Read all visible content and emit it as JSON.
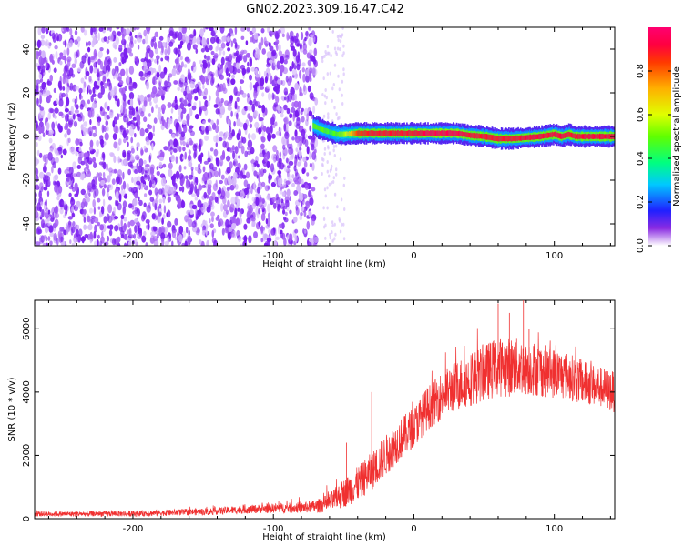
{
  "title": "GN02.2023.309.16.47.C42",
  "chart_data": [
    {
      "type": "heatmap",
      "name": "spectrogram",
      "title": "GN02.2023.309.16.47.C42",
      "xlabel": "Height of straight line (km)",
      "ylabel": "Frequency (Hz)",
      "xlim": [
        -270,
        143
      ],
      "ylim": [
        -50,
        50
      ],
      "x_ticks": [
        -200,
        -100,
        0,
        100
      ],
      "x_tick_labels": [
        "-200",
        "-100",
        "0",
        "100"
      ],
      "y_ticks": [
        -40,
        -20,
        0,
        20,
        40
      ],
      "y_tick_labels": [
        "-40",
        "-20",
        "0",
        "20",
        "40"
      ],
      "colorbar": {
        "label": "Normalized spectral amplitude",
        "range": [
          0,
          1
        ],
        "ticks": [
          0.0,
          0.2,
          0.4,
          0.6,
          0.8
        ],
        "tick_labels": [
          "0.0",
          "0.2",
          "0.4",
          "0.6",
          "0.8"
        ],
        "colormap": "gist_rainbow_reversed"
      },
      "noise_region": {
        "x_range": [
          -270,
          -72
        ],
        "level": 0.1
      },
      "signal_track": {
        "x": [
          -72,
          -65,
          -60,
          -55,
          -50,
          -40,
          -30,
          -20,
          -10,
          0,
          10,
          20,
          30,
          40,
          50,
          60,
          70,
          80,
          90,
          95,
          100,
          105,
          110,
          115,
          120,
          130,
          143
        ],
        "frequency": [
          5,
          3,
          2,
          1,
          1,
          1.5,
          1.5,
          1.5,
          1.5,
          1.5,
          1.5,
          1.5,
          1.5,
          0.5,
          0,
          -1,
          -1,
          -0.5,
          0,
          0.5,
          1,
          0,
          1,
          0,
          0,
          0,
          0
        ],
        "amplitude": [
          0.5,
          0.5,
          0.45,
          0.5,
          0.55,
          0.85,
          0.9,
          0.9,
          0.9,
          0.9,
          0.95,
          0.95,
          0.95,
          0.9,
          0.9,
          0.9,
          0.9,
          0.92,
          0.92,
          0.9,
          0.92,
          0.92,
          0.9,
          0.9,
          0.92,
          0.92,
          0.92
        ]
      }
    },
    {
      "type": "line",
      "name": "snr",
      "xlabel": "Height of straight line (km)",
      "ylabel": "SNR (10 * v/v)",
      "xlim": [
        -270,
        143
      ],
      "ylim": [
        0,
        6900
      ],
      "x_ticks": [
        -200,
        -100,
        0,
        100
      ],
      "x_tick_labels": [
        "-200",
        "-100",
        "0",
        "100"
      ],
      "y_ticks": [
        0,
        2000,
        4000,
        6000
      ],
      "y_tick_labels": [
        "0",
        "2000",
        "4000",
        "6000"
      ],
      "color": "#f03030",
      "envelope": {
        "x": [
          -270,
          -250,
          -200,
          -150,
          -120,
          -100,
          -80,
          -70,
          -60,
          -50,
          -40,
          -30,
          -20,
          -10,
          0,
          10,
          20,
          30,
          40,
          50,
          60,
          70,
          80,
          90,
          100,
          110,
          120,
          130,
          143
        ],
        "mean": [
          150,
          150,
          160,
          220,
          290,
          330,
          350,
          380,
          500,
          800,
          1100,
          1500,
          2000,
          2500,
          2900,
          3500,
          3900,
          4200,
          4400,
          4600,
          4800,
          4800,
          4800,
          4700,
          4600,
          4500,
          4300,
          4200,
          4000
        ],
        "spread": [
          80,
          80,
          90,
          110,
          130,
          150,
          170,
          200,
          300,
          450,
          550,
          600,
          650,
          650,
          650,
          700,
          750,
          800,
          850,
          900,
          950,
          950,
          900,
          850,
          800,
          750,
          700,
          650,
          650
        ]
      },
      "spikes": [
        {
          "x": -48,
          "y": 2400
        },
        {
          "x": -30,
          "y": 4000
        },
        {
          "x": 60,
          "y": 6800
        },
        {
          "x": 68,
          "y": 6500
        },
        {
          "x": 72,
          "y": 6300
        },
        {
          "x": 78,
          "y": 6900
        },
        {
          "x": 82,
          "y": 6000
        }
      ]
    }
  ]
}
